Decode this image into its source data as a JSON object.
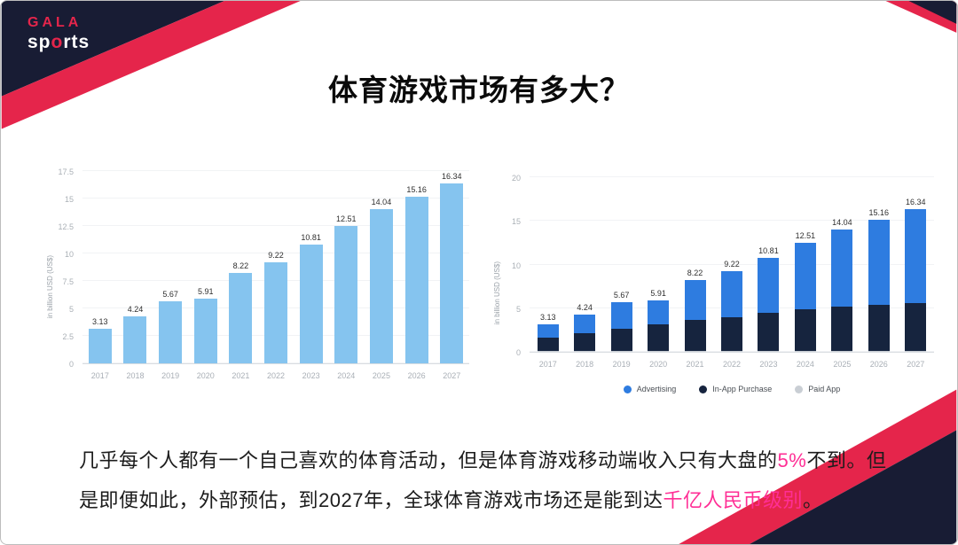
{
  "slide": {
    "title": "体育游戏市场有多大？"
  },
  "logo": {
    "top": "GALA",
    "bottom_pre": "sp",
    "bottom_o": "o",
    "bottom_post": "rts"
  },
  "chart_data": [
    {
      "type": "bar",
      "ylabel": "in billion USD (US$)",
      "ymax": 17.5,
      "yticks": [
        "0",
        "2.5",
        "5",
        "7.5",
        "10",
        "12.5",
        "15",
        "17.5"
      ],
      "categories": [
        "2017",
        "2018",
        "2019",
        "2020",
        "2021",
        "2022",
        "2023",
        "2024",
        "2025",
        "2026",
        "2027"
      ],
      "values": [
        3.13,
        4.24,
        5.67,
        5.91,
        8.22,
        9.22,
        10.81,
        12.51,
        14.04,
        15.16,
        16.34
      ],
      "labels": [
        "3.13",
        "4.24",
        "5.67",
        "5.91",
        "8.22",
        "9.22",
        "10.81",
        "12.51",
        "14.04",
        "15.16",
        "16.34"
      ],
      "bar_color": "#85C4EF",
      "grid": true,
      "legend_position": "none"
    },
    {
      "type": "stacked-bar",
      "ylabel": "in billion USD (US$)",
      "ymax": 20,
      "yticks": [
        "0",
        "5",
        "10",
        "15",
        "20"
      ],
      "categories": [
        "2017",
        "2018",
        "2019",
        "2020",
        "2021",
        "2022",
        "2023",
        "2024",
        "2025",
        "2026",
        "2027"
      ],
      "labels": [
        "3.13",
        "4.24",
        "5.67",
        "5.91",
        "8.22",
        "9.22",
        "10.81",
        "12.51",
        "14.04",
        "15.16",
        "16.34"
      ],
      "totals": [
        3.13,
        4.24,
        5.67,
        5.91,
        8.22,
        9.22,
        10.81,
        12.51,
        14.04,
        15.16,
        16.34
      ],
      "series": [
        {
          "name": "Advertising",
          "color": "#2E7CE0",
          "values": [
            1.53,
            2.14,
            3.07,
            2.81,
            4.52,
            5.22,
            6.31,
            7.61,
            8.84,
            9.76,
            10.74
          ]
        },
        {
          "name": "In-App Purchase",
          "color": "#16243E",
          "values": [
            1.5,
            2.0,
            2.5,
            3.0,
            3.6,
            3.9,
            4.4,
            4.8,
            5.1,
            5.3,
            5.5
          ]
        },
        {
          "name": "Paid App",
          "color": "#C9CED4",
          "values": [
            0.1,
            0.1,
            0.1,
            0.1,
            0.1,
            0.1,
            0.1,
            0.1,
            0.1,
            0.1,
            0.1
          ]
        }
      ],
      "grid": true,
      "legend_position": "bottom"
    }
  ],
  "footer": {
    "lines": [
      {
        "segments": [
          {
            "text": "几乎每个人都有一个自己喜欢的体育活动，但是体育游戏移动端收入只有大盘的",
            "highlight": false
          },
          {
            "text": "5%",
            "highlight": true
          },
          {
            "text": "不到。但",
            "highlight": false
          }
        ]
      },
      {
        "segments": [
          {
            "text": "是即便如此，外部预估，到2027年，全球体育游戏市场还是能到达",
            "highlight": false
          },
          {
            "text": "千亿人民币级别",
            "highlight": true
          },
          {
            "text": "。",
            "highlight": false
          }
        ]
      }
    ]
  },
  "colors": {
    "navy": "#181C34",
    "accent_red": "#E5254B",
    "highlight_pink": "#FF2E95",
    "slide_border": "#BDBDBD"
  }
}
